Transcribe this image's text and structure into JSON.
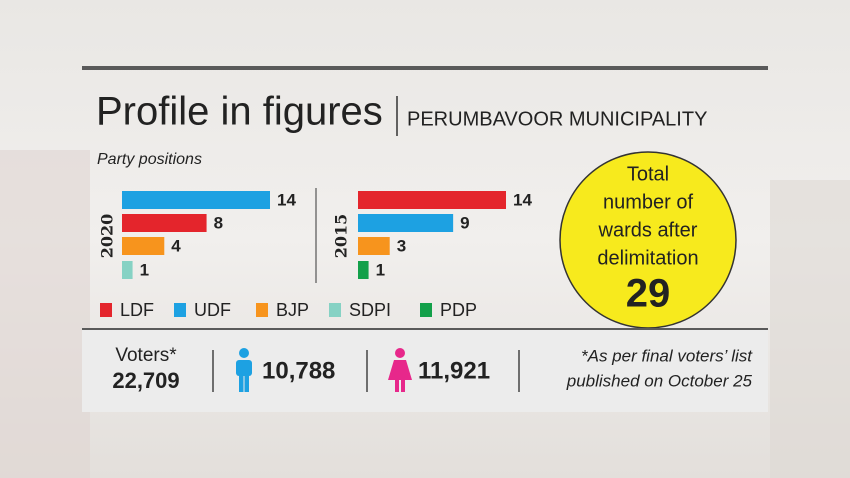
{
  "header": {
    "title": "Profile in figures",
    "subtitle": "PERUMBAVOOR MUNICIPALITY",
    "caption": "Party positions"
  },
  "chart_data": [
    {
      "type": "bar",
      "title": "2020",
      "values": [
        14,
        8,
        4,
        1
      ],
      "colors": [
        "#1da1e2",
        "#e4252c",
        "#f7941d",
        "#86d2c4"
      ]
    },
    {
      "type": "bar",
      "title": "2015",
      "values": [
        14,
        9,
        3,
        1
      ],
      "colors": [
        "#e4252c",
        "#1da1e2",
        "#f7941d",
        "#13a04a"
      ]
    }
  ],
  "legend": [
    {
      "name": "LDF",
      "color": "#e4252c"
    },
    {
      "name": "UDF",
      "color": "#1da1e2"
    },
    {
      "name": "BJP",
      "color": "#f7941d"
    },
    {
      "name": "SDPI",
      "color": "#86d2c4"
    },
    {
      "name": "PDP",
      "color": "#13a04a"
    }
  ],
  "wards": {
    "lines": [
      "Total",
      "number of",
      "wards after",
      "delimitation"
    ],
    "value": "29"
  },
  "voters": {
    "label": "Voters*",
    "total": "22,709",
    "male": "10,788",
    "female": "11,921",
    "note": [
      "*As per final voters’ list",
      "published on October 25"
    ]
  }
}
